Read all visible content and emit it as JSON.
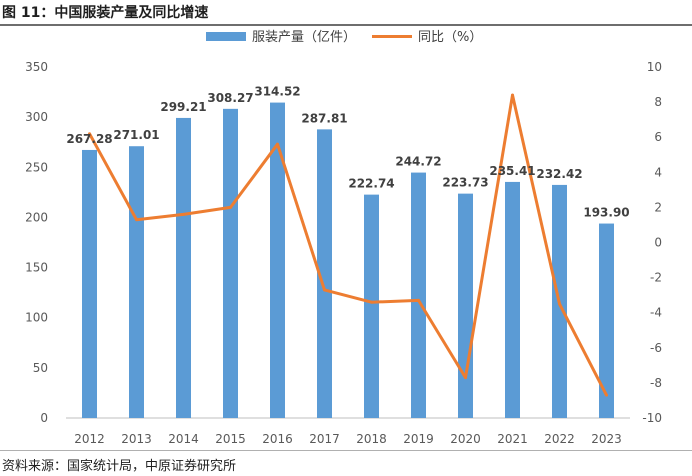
{
  "header": {
    "title": "图 11：中国服装产量及同比增速"
  },
  "footer": {
    "source": "资料来源：国家统计局，中原证券研究所"
  },
  "colors": {
    "bar": "#5b9bd5",
    "line": "#ed7d31"
  },
  "chart_data": {
    "type": "bar+line",
    "title": "图 11：中国服装产量及同比增速",
    "categories": [
      "2012",
      "2013",
      "2014",
      "2015",
      "2016",
      "2017",
      "2018",
      "2019",
      "2020",
      "2021",
      "2022",
      "2023"
    ],
    "series": [
      {
        "name": "服装产量（亿件）",
        "type": "bar",
        "axis": "left",
        "values": [
          267.28,
          271.01,
          299.21,
          308.27,
          314.52,
          287.81,
          222.74,
          244.72,
          223.73,
          235.41,
          232.42,
          193.9
        ],
        "labels": [
          "267.28",
          "271.01",
          "299.21",
          "308.27",
          "314.52",
          "287.81",
          "222.74",
          "244.72",
          "223.73",
          "235.41",
          "232.42",
          "193.90"
        ]
      },
      {
        "name": "同比（%）",
        "type": "line",
        "axis": "right",
        "values": [
          6.2,
          1.3,
          1.6,
          2.0,
          5.6,
          -2.7,
          -3.4,
          -3.3,
          -7.7,
          8.4,
          -3.5,
          -8.7
        ]
      }
    ],
    "y_left": {
      "min": 0,
      "max": 350,
      "ticks": [
        "0",
        "50",
        "100",
        "150",
        "200",
        "250",
        "300",
        "350"
      ]
    },
    "y_right": {
      "min": -10,
      "max": 10,
      "ticks": [
        "-10",
        "-8",
        "-6",
        "-4",
        "-2",
        "0",
        "2",
        "4",
        "6",
        "8",
        "10"
      ]
    },
    "legend_position": "top"
  }
}
